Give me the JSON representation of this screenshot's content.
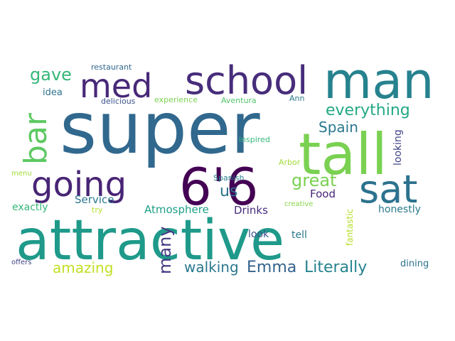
{
  "words": [
    {
      "text": "super",
      "color": "#31688e"
    },
    {
      "text": "attractive",
      "color": "#1f9a8a"
    },
    {
      "text": "man",
      "color": "#26828e"
    },
    {
      "text": "tall",
      "color": "#7ad151"
    },
    {
      "text": "6'6",
      "color": "#440154"
    },
    {
      "text": "school",
      "color": "#472d7b"
    },
    {
      "text": "med",
      "color": "#482878"
    },
    {
      "text": "going",
      "color": "#482475"
    },
    {
      "text": "sat",
      "color": "#2c728e"
    },
    {
      "text": "bar",
      "color": "#5ec962"
    },
    {
      "text": "everything",
      "color": "#22a884"
    },
    {
      "text": "gave",
      "color": "#35b779"
    },
    {
      "text": "great",
      "color": "#7ad151"
    },
    {
      "text": "Spain",
      "color": "#2a788e"
    },
    {
      "text": "us",
      "color": "#2c728e"
    },
    {
      "text": "many",
      "color": "#443a83"
    },
    {
      "text": "Emma",
      "color": "#33638d"
    },
    {
      "text": "Literally",
      "color": "#26828e"
    },
    {
      "text": "walking",
      "color": "#2a788e"
    },
    {
      "text": "amazing",
      "color": "#c2df23"
    },
    {
      "text": "Atmosphere",
      "color": "#1fa088"
    },
    {
      "text": "Service",
      "color": "#2a788e"
    },
    {
      "text": "Food",
      "color": "#482475"
    },
    {
      "text": "Drinks",
      "color": "#472d7b"
    },
    {
      "text": "looking",
      "color": "#414487"
    },
    {
      "text": "honestly",
      "color": "#2a788e"
    },
    {
      "text": "exactly",
      "color": "#35b779"
    },
    {
      "text": "tell",
      "color": "#2a788e"
    },
    {
      "text": "look",
      "color": "#3b528b"
    },
    {
      "text": "fantastic",
      "color": "#b5de2b"
    },
    {
      "text": "dining",
      "color": "#2c728e"
    },
    {
      "text": "idea",
      "color": "#2c728e"
    },
    {
      "text": "restaurant",
      "color": "#31688e"
    },
    {
      "text": "delicious",
      "color": "#3b528b"
    },
    {
      "text": "experience",
      "color": "#7ad151"
    },
    {
      "text": "Aventura",
      "color": "#52c569"
    },
    {
      "text": "Ann",
      "color": "#2a788e"
    },
    {
      "text": "inspired",
      "color": "#35b779"
    },
    {
      "text": "Arbor",
      "color": "#a0da39"
    },
    {
      "text": "Spanish",
      "color": "#26828e"
    },
    {
      "text": "menu",
      "color": "#a0da39"
    },
    {
      "text": "try",
      "color": "#b5de2b"
    },
    {
      "text": "creative",
      "color": "#86d549"
    },
    {
      "text": "offers",
      "color": "#414487"
    }
  ]
}
